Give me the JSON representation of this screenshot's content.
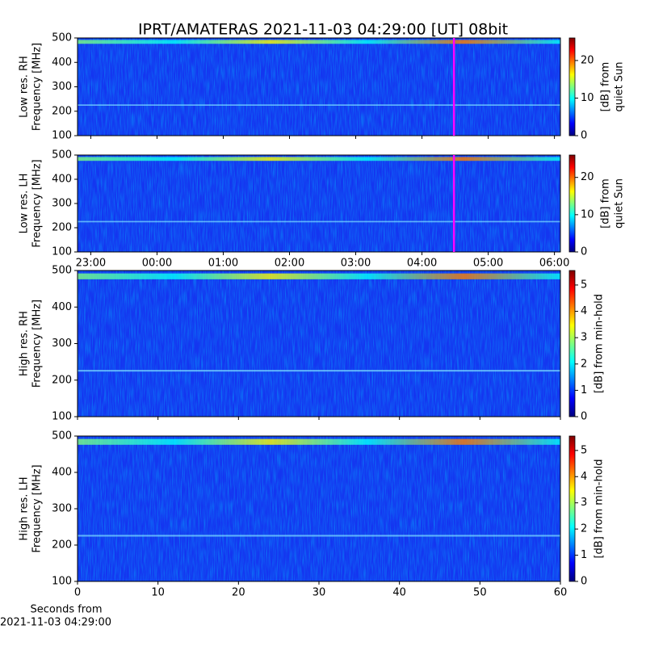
{
  "title": "IPRT/AMATERAS 2021-11-03 04:29:00 [UT]   08bit",
  "colormap": [
    "#00007f",
    "#0000ff",
    "#007fff",
    "#00ffff",
    "#7fff7f",
    "#ffff00",
    "#ff7f00",
    "#ff0000",
    "#7f0000"
  ],
  "chart_data": [
    {
      "type": "heatmap",
      "ylabel": [
        "Low res. RH",
        "Frequency [MHz]"
      ],
      "ylim": [
        100,
        500
      ],
      "yticks": [
        100,
        200,
        300,
        400,
        500
      ],
      "xlim": [
        22.8,
        30.09
      ],
      "marker": 28.483,
      "marker_color": "#ff00ff",
      "colorbar_label": [
        "[dB] from",
        "quiet Sun"
      ],
      "clim": [
        0,
        26
      ],
      "cticks": [
        0,
        10,
        20
      ]
    },
    {
      "type": "heatmap",
      "ylabel": [
        "Low res. LH",
        "Frequency [MHz]"
      ],
      "ylim": [
        100,
        500
      ],
      "yticks": [
        100,
        200,
        300,
        400,
        500
      ],
      "xlim": [
        22.8,
        30.09
      ],
      "marker": 28.483,
      "marker_color": "#ff00ff",
      "xticks": [
        {
          "value": 23,
          "label": "23:00"
        },
        {
          "value": 24,
          "label": "00:00"
        },
        {
          "value": 25,
          "label": "01:00"
        },
        {
          "value": 26,
          "label": "02:00"
        },
        {
          "value": 27,
          "label": "03:00"
        },
        {
          "value": 28,
          "label": "04:00"
        },
        {
          "value": 29,
          "label": "05:00"
        },
        {
          "value": 30,
          "label": "06:00"
        }
      ],
      "colorbar_label": [
        "[dB] from",
        "quiet Sun"
      ],
      "clim": [
        0,
        26
      ],
      "cticks": [
        0,
        10,
        20
      ]
    },
    {
      "type": "heatmap",
      "ylabel": [
        "High res. RH",
        "Frequency [MHz]"
      ],
      "ylim": [
        100,
        500
      ],
      "yticks": [
        100,
        200,
        300,
        400,
        500
      ],
      "xlim": [
        0,
        60
      ],
      "colorbar_label": [
        "[dB] from min-hold"
      ],
      "clim": [
        0,
        5.55
      ],
      "cticks": [
        0,
        1,
        2,
        3,
        4,
        5
      ]
    },
    {
      "type": "heatmap",
      "ylabel": [
        "High res. LH",
        "Frequency [MHz]"
      ],
      "ylim": [
        100,
        500
      ],
      "yticks": [
        100,
        200,
        300,
        400,
        500
      ],
      "xlim": [
        0,
        60
      ],
      "xticks": [
        0,
        10,
        20,
        30,
        40,
        50,
        60
      ],
      "xlabel": [
        "Seconds from",
        "2021-11-03 04:29:00"
      ],
      "colorbar_label": [
        "[dB] from min-hold"
      ],
      "clim": [
        0,
        5.55
      ],
      "cticks": [
        0,
        1,
        2,
        3,
        4,
        5
      ]
    }
  ]
}
